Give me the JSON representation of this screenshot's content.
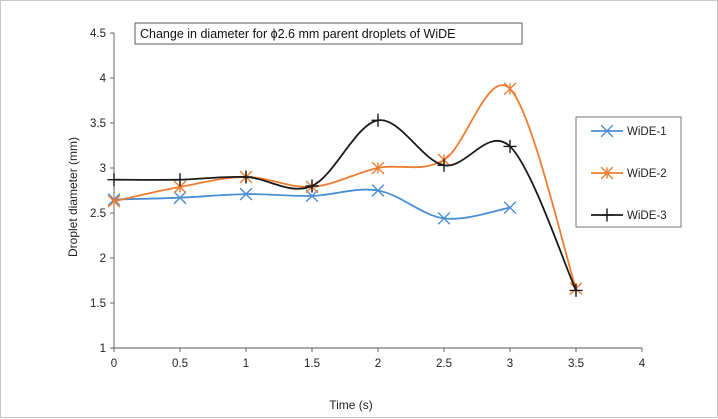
{
  "chart_data": {
    "type": "line",
    "title": "Change in diameter for ϕ2.6 mm parent droplets of  WiDE",
    "xlabel": "Time (s)",
    "ylabel": "Droplet diameter (mm)",
    "xlim": [
      0,
      4
    ],
    "ylim": [
      1,
      4.5
    ],
    "xticks": [
      "0",
      "0.5",
      "1",
      "1.5",
      "2",
      "2.5",
      "3",
      "3.5",
      "4"
    ],
    "yticks": [
      "1",
      "1.5",
      "2",
      "2.5",
      "3",
      "3.5",
      "4",
      "4.5"
    ],
    "grid": false,
    "legend_position": "right",
    "smooth": true,
    "series": [
      {
        "name": "WiDE-1",
        "color": "#4a8fd4",
        "marker": "x",
        "x": [
          0,
          0.5,
          1,
          1.5,
          2,
          2.5,
          3
        ],
        "y": [
          2.65,
          2.67,
          2.71,
          2.69,
          2.75,
          2.44,
          2.56
        ]
      },
      {
        "name": "WiDE-2",
        "color": "#ed7d31",
        "marker": "asterisk",
        "x": [
          0,
          0.5,
          1,
          1.5,
          2,
          2.5,
          3,
          3.5
        ],
        "y": [
          2.63,
          2.79,
          2.9,
          2.79,
          3.0,
          3.09,
          3.88,
          1.66
        ]
      },
      {
        "name": "WiDE-3",
        "color": "#1a1a1a",
        "marker": "plus",
        "x": [
          0,
          0.5,
          1,
          1.5,
          2,
          2.5,
          3,
          3.5
        ],
        "y": [
          2.87,
          2.87,
          2.9,
          2.8,
          3.53,
          3.03,
          3.24,
          1.64
        ]
      }
    ]
  }
}
